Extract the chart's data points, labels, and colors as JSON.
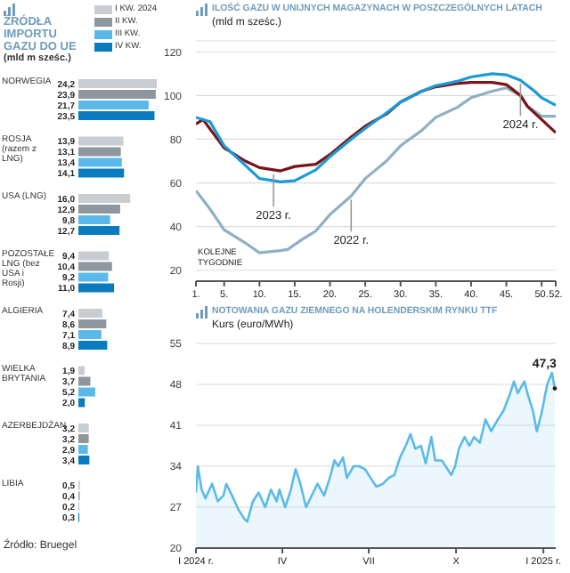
{
  "chart_data": [
    {
      "type": "bar",
      "orientation": "horizontal",
      "title": "ŹRÓDŁA IMPORTU GAZU DO UE",
      "subtitle": "(mld m sześc.)",
      "legend": "top right",
      "categories": [
        "NORWEGIA",
        "ROSJA (razem z LNG)",
        "USA (LNG)",
        "POZOSTAŁE LNG (bez USA i Rosji)",
        "ALGIERIA",
        "WIELKA BRYTANIA",
        "AZERBEJDŻAN",
        "LIBIA"
      ],
      "series": [
        {
          "name": "I KW. 2024",
          "color": "#c8cdd2",
          "values": [
            24.2,
            13.9,
            16.0,
            9.4,
            7.4,
            1.9,
            3.2,
            0.5
          ],
          "value_labels": [
            "24,2",
            "13,9",
            "16,0",
            "9,4",
            "7,4",
            "1,9",
            "3,2",
            "0,5"
          ]
        },
        {
          "name": "II KW.",
          "color": "#8e979e",
          "values": [
            23.9,
            13.1,
            12.9,
            10.4,
            8.6,
            3.7,
            3.2,
            0.4
          ],
          "value_labels": [
            "23,9",
            "13,1",
            "12,9",
            "10,4",
            "8,6",
            "3,7",
            "3,2",
            "0,4"
          ]
        },
        {
          "name": "III KW.",
          "color": "#5bb8ea",
          "values": [
            21.7,
            13.4,
            9.8,
            9.2,
            7.1,
            5.2,
            2.9,
            0.2
          ],
          "value_labels": [
            "21,7",
            "13,4",
            "9,8",
            "9,2",
            "7,1",
            "5,2",
            "2,9",
            "0,2"
          ]
        },
        {
          "name": "IV KW.",
          "color": "#0a7bbf",
          "values": [
            23.5,
            14.1,
            12.7,
            11.0,
            8.9,
            2.0,
            3.4,
            0.3
          ],
          "value_labels": [
            "23,5",
            "14,1",
            "12,7",
            "11,0",
            "8,9",
            "2,0",
            "3,4",
            "0,3"
          ]
        }
      ],
      "annotations": [
        "Źródło: Bruegel"
      ]
    },
    {
      "type": "line",
      "title": "ILOŚĆ GAZU W UNIJNYCH MAGAZYNACH W POSZCZEGÓLNYCH LATACH",
      "ylabel": "(mld m sześc.)",
      "xlabel": "KOLEJNE TYGODNIE",
      "grid": "y",
      "xlim": [
        1,
        52
      ],
      "xticks": [
        {
          "value": 1,
          "label": "1."
        },
        {
          "value": 5,
          "label": "5."
        },
        {
          "value": 10,
          "label": "10."
        },
        {
          "value": 15,
          "label": "15."
        },
        {
          "value": 20,
          "label": "20."
        },
        {
          "value": 25,
          "label": "25."
        },
        {
          "value": 30,
          "label": "30."
        },
        {
          "value": 35,
          "label": "35."
        },
        {
          "value": 40,
          "label": "40."
        },
        {
          "value": 45,
          "label": "45."
        },
        {
          "value": 50,
          "label": "50."
        },
        {
          "value": 52,
          "label": "52."
        }
      ],
      "ylim": [
        15,
        125
      ],
      "yticks": [
        20,
        40,
        60,
        80,
        100,
        120
      ],
      "series": [
        {
          "color": "#8fb0c4",
          "x": [
            1,
            3,
            5,
            8,
            10,
            13,
            14,
            16,
            18,
            20,
            23,
            25,
            28,
            30,
            33,
            35,
            38,
            40,
            43,
            45,
            47,
            48,
            50,
            52
          ],
          "values": [
            56.5,
            48,
            38.5,
            32.5,
            28,
            29,
            29.5,
            34,
            38,
            45.5,
            54,
            62,
            70,
            77,
            84,
            90,
            94.5,
            99,
            102,
            103.5,
            100,
            95,
            90.5,
            90.5
          ]
        },
        {
          "color": "#7a1416",
          "x": [
            1,
            2,
            5,
            8,
            10,
            13,
            15,
            18,
            20,
            23,
            25,
            28,
            30,
            33,
            35,
            38,
            40,
            43,
            45,
            47,
            48,
            50,
            52
          ],
          "values": [
            87,
            89,
            76,
            70,
            67,
            65.5,
            67.5,
            68.5,
            73,
            81,
            86,
            91.5,
            97,
            102,
            104,
            105.5,
            106,
            106,
            105,
            100,
            95,
            89,
            83
          ]
        },
        {
          "color": "#1a9ad6",
          "x": [
            1,
            3,
            5,
            8,
            10,
            13,
            15,
            18,
            20,
            23,
            25,
            28,
            30,
            33,
            35,
            38,
            40,
            43,
            45,
            47,
            49,
            50,
            52
          ],
          "values": [
            90,
            88,
            77,
            68,
            62,
            60.5,
            61,
            66,
            72,
            80,
            85,
            92,
            97,
            102,
            104.5,
            106.5,
            108.5,
            110,
            109.5,
            107,
            102,
            99,
            95.5
          ]
        }
      ],
      "annotations": [
        {
          "text": "2023 r.",
          "x": 12,
          "y": 65.5
        },
        {
          "text": "2022 r.",
          "x": 23,
          "y": 54
        },
        {
          "text": "2024 r.",
          "x": 47,
          "y": 107
        }
      ]
    },
    {
      "type": "area",
      "title": "NOTOWANIA GAZU ZIEMNEGO NA HOLENDERSKIM RYNKU TTF",
      "ylabel": "Kurs (euro/MWh)",
      "grid": "y",
      "xlim": [
        "2024-01-01",
        "2025-01-14"
      ],
      "xticks": [
        {
          "value": "2024-01-01",
          "label": "I 2024 r."
        },
        {
          "value": "2024-04-01",
          "label": "IV"
        },
        {
          "value": "2024-07-01",
          "label": "VII"
        },
        {
          "value": "2024-10-01",
          "label": "X"
        },
        {
          "value": "2025-01-01",
          "label": "I 2025 r."
        }
      ],
      "ylim": [
        20,
        55
      ],
      "yticks": [
        20,
        27,
        34,
        41,
        48,
        55
      ],
      "series": [
        {
          "color": "#5bbbe8",
          "x": [
            "2024-01-01",
            "2024-01-03",
            "2024-01-07",
            "2024-01-11",
            "2024-01-18",
            "2024-01-24",
            "2024-01-30",
            "2024-02-02",
            "2024-02-08",
            "2024-02-15",
            "2024-02-21",
            "2024-02-24",
            "2024-03-01",
            "2024-03-07",
            "2024-03-14",
            "2024-03-20",
            "2024-03-26",
            "2024-03-29",
            "2024-04-04",
            "2024-04-10",
            "2024-04-15",
            "2024-04-20",
            "2024-04-26",
            "2024-05-02",
            "2024-05-08",
            "2024-05-15",
            "2024-05-21",
            "2024-05-26",
            "2024-05-30",
            "2024-06-04",
            "2024-06-08",
            "2024-06-15",
            "2024-06-21",
            "2024-06-27",
            "2024-07-03",
            "2024-07-09",
            "2024-07-16",
            "2024-07-22",
            "2024-07-28",
            "2024-08-03",
            "2024-08-09",
            "2024-08-14",
            "2024-08-19",
            "2024-08-25",
            "2024-08-30",
            "2024-09-05",
            "2024-09-09",
            "2024-09-16",
            "2024-09-22",
            "2024-09-26",
            "2024-09-30",
            "2024-10-04",
            "2024-10-10",
            "2024-10-15",
            "2024-10-20",
            "2024-10-26",
            "2024-11-01",
            "2024-11-07",
            "2024-11-14",
            "2024-11-20",
            "2024-11-26",
            "2024-12-01",
            "2024-12-05",
            "2024-12-12",
            "2024-12-16",
            "2024-12-21",
            "2024-12-25",
            "2024-12-30",
            "2025-01-05",
            "2025-01-10",
            "2025-01-13"
          ],
          "values": [
            29.5,
            34,
            30,
            28.5,
            31,
            28,
            29,
            31,
            29,
            26.5,
            25,
            24.5,
            28,
            29.5,
            27,
            30,
            28,
            30,
            27,
            30,
            33.5,
            31,
            27,
            29,
            31,
            29,
            32,
            35,
            34,
            35.5,
            32,
            34,
            34,
            33.5,
            32,
            30.5,
            31,
            32,
            32.5,
            35.5,
            37.5,
            39.5,
            37,
            37.5,
            34.5,
            39,
            35,
            35,
            33.5,
            32.5,
            34,
            37,
            39,
            37.5,
            39,
            38,
            42,
            40,
            42,
            43.5,
            46,
            48.5,
            46.5,
            48.5,
            46,
            43.5,
            40,
            43,
            48,
            50,
            47.3
          ]
        }
      ],
      "annotations": [
        {
          "text": "47,3",
          "x": "2025-01-13",
          "y": 47.3
        }
      ]
    }
  ]
}
